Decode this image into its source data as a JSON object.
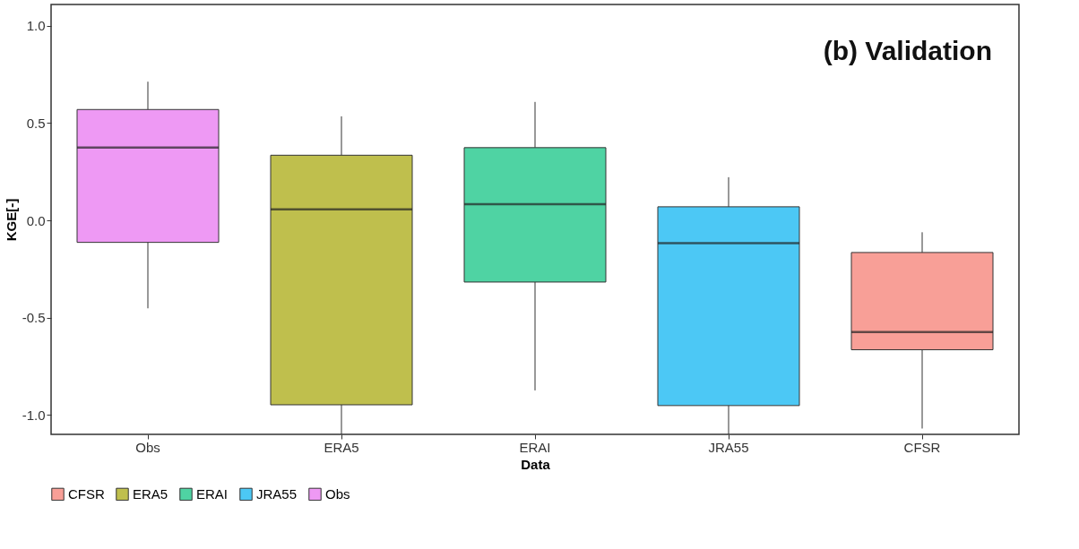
{
  "chart_data": {
    "type": "box",
    "xlabel": "Data",
    "ylabel": "KGE[-]",
    "annotations": [
      "(b) Validation"
    ],
    "categories": [
      "Obs",
      "ERA5",
      "ERAI",
      "JRA55",
      "CFSR"
    ],
    "series": [
      {
        "name": "CFSR",
        "color": "#f89f97",
        "x": [
          "CFSR"
        ],
        "boxes": [
          {
            "low": -1.07,
            "q1": -0.665,
            "median": -0.574,
            "q3": -0.165,
            "high": -0.061
          }
        ]
      },
      {
        "name": "ERA5",
        "color": "#bfbf4d",
        "x": [
          "ERA5"
        ],
        "boxes": [
          {
            "low": -1.1,
            "q1": -0.948,
            "median": 0.057,
            "q3": 0.335,
            "high": 0.535
          }
        ]
      },
      {
        "name": "ERAI",
        "color": "#4fd3a3",
        "x": [
          "ERAI"
        ],
        "boxes": [
          {
            "low": -0.874,
            "q1": -0.317,
            "median": 0.083,
            "q3": 0.374,
            "high": 0.609
          }
        ]
      },
      {
        "name": "JRA55",
        "color": "#4cc8f5",
        "x": [
          "JRA55"
        ],
        "boxes": [
          {
            "low": -1.1,
            "q1": -0.952,
            "median": -0.117,
            "q3": 0.07,
            "high": 0.222
          }
        ]
      },
      {
        "name": "Obs",
        "color": "#ee99f4",
        "x": [
          "Obs"
        ],
        "boxes": [
          {
            "low": -0.452,
            "q1": -0.113,
            "median": 0.374,
            "q3": 0.57,
            "high": 0.713
          }
        ]
      }
    ],
    "ylim": [
      -1.1,
      1.11
    ],
    "yticks": [
      {
        "value": -1.0,
        "label": "-1.0"
      },
      {
        "value": -0.5,
        "label": "-0.5"
      },
      {
        "value": 0,
        "label": "0.0"
      },
      {
        "value": 0.5,
        "label": "0.5"
      },
      {
        "value": 1.0,
        "label": "1.0"
      }
    ],
    "grid": false,
    "legend": "bottom"
  }
}
